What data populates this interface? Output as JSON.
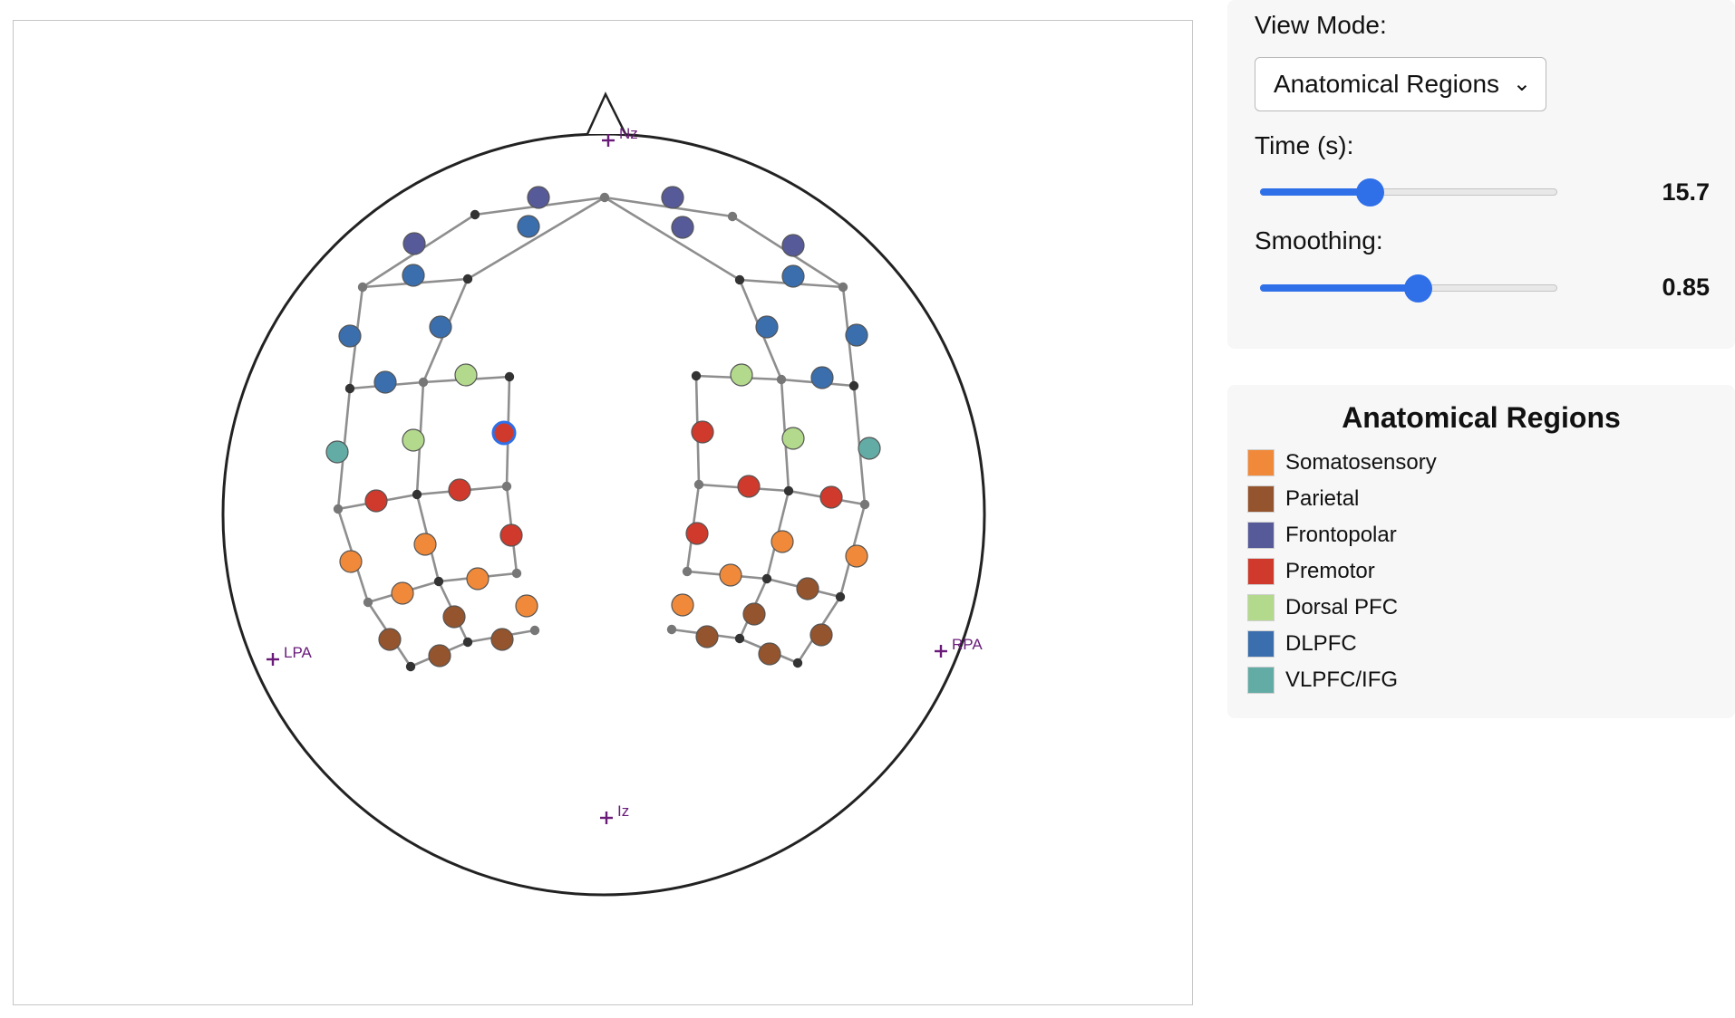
{
  "controls": {
    "view_mode_label": "View Mode:",
    "view_mode_selected": "Anatomical Regions",
    "time": {
      "label": "Time (s):",
      "value": "15.7",
      "fraction": 0.37
    },
    "smoothing": {
      "label": "Smoothing:",
      "value": "0.85",
      "fraction": 0.53
    }
  },
  "legend": {
    "title": "Anatomical Regions",
    "items": [
      {
        "key": "somatosensory",
        "label": "Somatosensory",
        "color": "#f08a3a"
      },
      {
        "key": "parietal",
        "label": "Parietal",
        "color": "#94542d"
      },
      {
        "key": "frontopolar",
        "label": "Frontopolar",
        "color": "#575a99"
      },
      {
        "key": "premotor",
        "label": "Premotor",
        "color": "#cf3a2c"
      },
      {
        "key": "dorsal_pfc",
        "label": "Dorsal PFC",
        "color": "#b3d98c"
      },
      {
        "key": "dlpfc",
        "label": "DLPFC",
        "color": "#3a6ead"
      },
      {
        "key": "vlpfc",
        "label": "VLPFC/IFG",
        "color": "#63aca6"
      }
    ]
  },
  "landmarks": {
    "nz": "Nz",
    "lpa": "LPA",
    "rpa": "RPA",
    "iz": "Iz"
  },
  "selection_color": "#2f6fe8"
}
